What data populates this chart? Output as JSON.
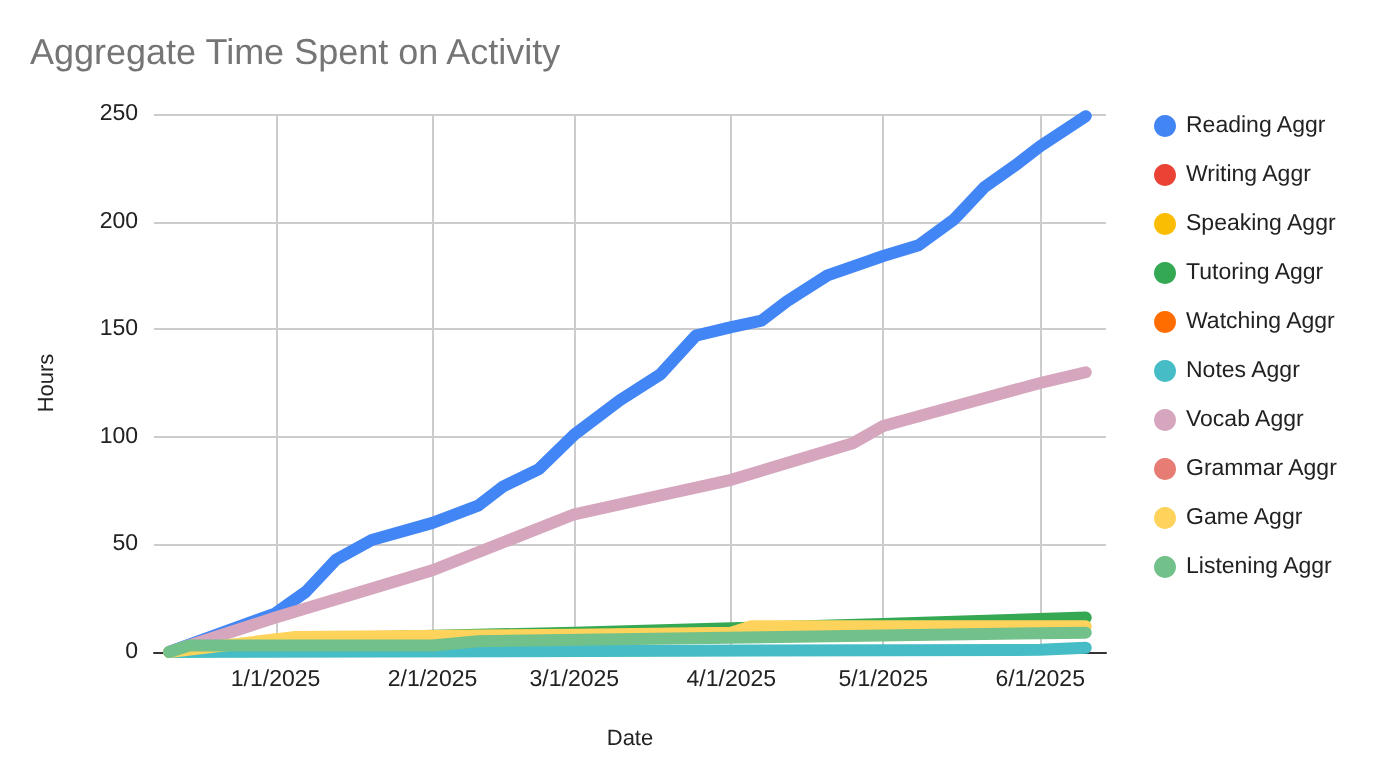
{
  "chart_data": {
    "type": "line",
    "title": "Aggregate Time Spent on Activity",
    "xlabel": "Date",
    "ylabel": "Hours",
    "xlim": [
      "2024-12-08",
      "2025-06-14"
    ],
    "xticks": [
      {
        "value": "2025-01-01",
        "label": "1/1/2025"
      },
      {
        "value": "2025-02-01",
        "label": "2/1/2025"
      },
      {
        "value": "2025-03-01",
        "label": "3/1/2025"
      },
      {
        "value": "2025-04-01",
        "label": "4/1/2025"
      },
      {
        "value": "2025-05-01",
        "label": "5/1/2025"
      },
      {
        "value": "2025-06-01",
        "label": "6/1/2025"
      }
    ],
    "ylim": [
      0,
      250
    ],
    "yticks": [
      0,
      50,
      100,
      150,
      200,
      250
    ],
    "grid": true,
    "legend": "right",
    "marker": "none",
    "line_style": "solid",
    "series": [
      {
        "name": "Reading Aggr",
        "color": "#4285f4",
        "x": [
          "2024-12-11",
          "2025-01-01",
          "2025-01-07",
          "2025-01-13",
          "2025-01-20",
          "2025-02-01",
          "2025-02-10",
          "2025-02-15",
          "2025-02-22",
          "2025-03-01",
          "2025-03-10",
          "2025-03-18",
          "2025-03-25",
          "2025-04-01",
          "2025-04-07",
          "2025-04-12",
          "2025-04-20",
          "2025-05-01",
          "2025-05-08",
          "2025-05-15",
          "2025-05-21",
          "2025-05-27",
          "2025-06-01",
          "2025-06-10"
        ],
        "values": [
          0,
          18,
          28,
          43,
          52,
          60,
          68,
          77,
          85,
          101,
          117,
          129,
          147,
          151,
          154,
          163,
          175,
          184,
          189,
          201,
          216,
          226,
          235,
          249
        ]
      },
      {
        "name": "Writing Aggr",
        "color": "#ea4335"
      },
      {
        "name": "Speaking Aggr",
        "color": "#fbbc04"
      },
      {
        "name": "Tutoring Aggr",
        "color": "#34a853",
        "x": [
          "2024-12-11",
          "2025-01-05",
          "2025-03-01",
          "2025-04-01",
          "2025-05-01",
          "2025-06-10"
        ],
        "values": [
          0,
          6,
          9,
          11,
          13,
          16
        ]
      },
      {
        "name": "Watching Aggr",
        "color": "#ff6d01"
      },
      {
        "name": "Notes Aggr",
        "color": "#46bdc6",
        "x": [
          "2024-12-11",
          "2025-06-01",
          "2025-06-10"
        ],
        "values": [
          0,
          1,
          2
        ]
      },
      {
        "name": "Vocab Aggr",
        "color": "#d5a6bd",
        "x": [
          "2024-12-11",
          "2025-01-01",
          "2025-02-01",
          "2025-03-01",
          "2025-04-01",
          "2025-04-25",
          "2025-05-01",
          "2025-06-01",
          "2025-06-10"
        ],
        "values": [
          0,
          16,
          38,
          64,
          80,
          97,
          105,
          125,
          130
        ]
      },
      {
        "name": "Grammar Aggr",
        "color": "#e67c73"
      },
      {
        "name": "Game Aggr",
        "color": "#fdd35c",
        "x": [
          "2024-12-11",
          "2025-01-05",
          "2025-03-01",
          "2025-04-01",
          "2025-04-05",
          "2025-06-10"
        ],
        "values": [
          0,
          7,
          8,
          9,
          12,
          12
        ]
      },
      {
        "name": "Listening Aggr",
        "color": "#72c08a",
        "x": [
          "2024-12-11",
          "2024-12-15",
          "2025-02-01",
          "2025-02-10",
          "2025-06-10"
        ],
        "values": [
          0,
          3,
          3,
          5,
          9
        ]
      }
    ]
  }
}
